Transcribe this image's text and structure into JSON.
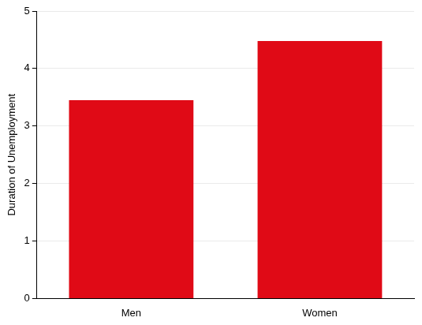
{
  "chart_data": {
    "type": "bar",
    "y_label": "Duration of Unemployment",
    "categories": [
      "Men",
      "Women"
    ],
    "values": [
      3.45,
      4.48
    ],
    "color": "#e00a16",
    "ylim": [
      0,
      5
    ],
    "yticks": [
      0,
      1,
      2,
      3,
      4,
      5
    ],
    "grid": true
  }
}
